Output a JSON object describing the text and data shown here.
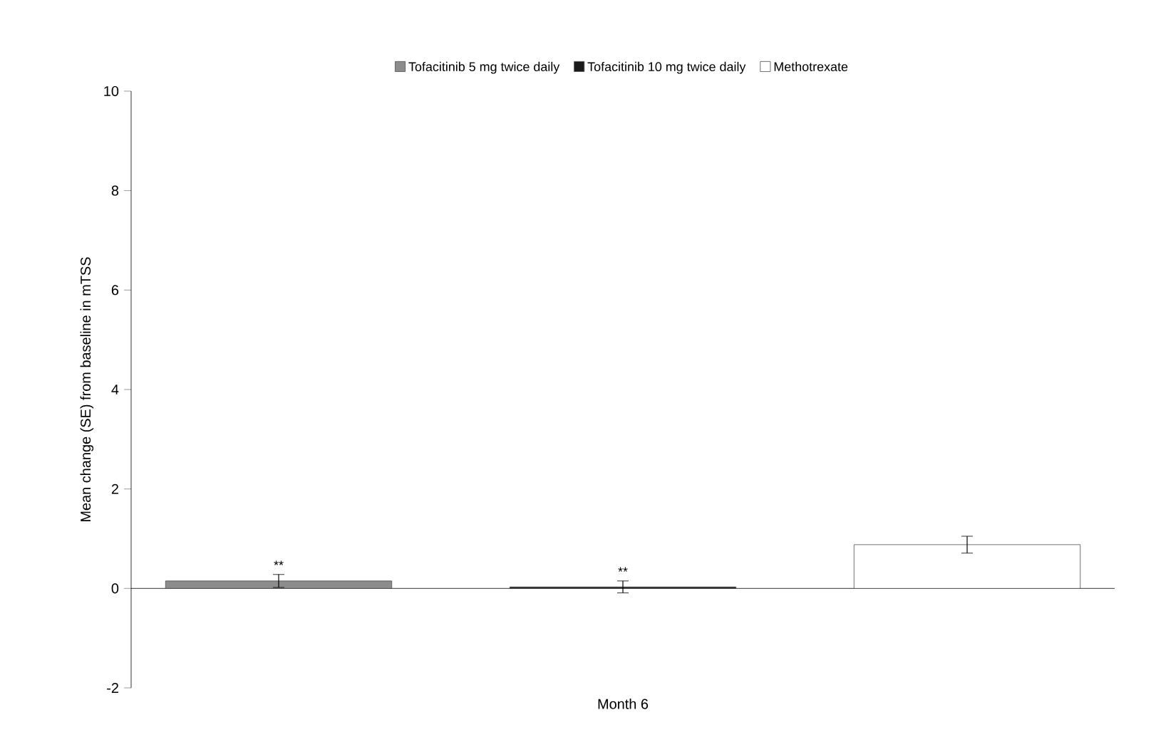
{
  "chart_data": {
    "type": "bar",
    "xlabel": "Month 6",
    "ylabel": "Mean change (SE) from baseline in mTSS",
    "categories": [
      null
    ],
    "series": [
      {
        "name": "Tofacitinib 5 mg twice daily",
        "color": "#8c8c8c",
        "values": [
          0.15
        ],
        "errors": [
          0.13
        ]
      },
      {
        "name": "Tofacitinib 10 mg twice daily",
        "color": "#1a1a1a",
        "values": [
          0.03
        ],
        "errors": [
          0.12
        ]
      },
      {
        "name": "Methotrexate",
        "color": "#ffffff",
        "values": [
          0.88
        ],
        "errors": [
          0.17
        ]
      }
    ],
    "annotations": [
      "**",
      "**"
    ],
    "ylim": [
      -2,
      10
    ],
    "yticks": [
      -2,
      0,
      2,
      4,
      6,
      8,
      10
    ],
    "legend": "top"
  }
}
